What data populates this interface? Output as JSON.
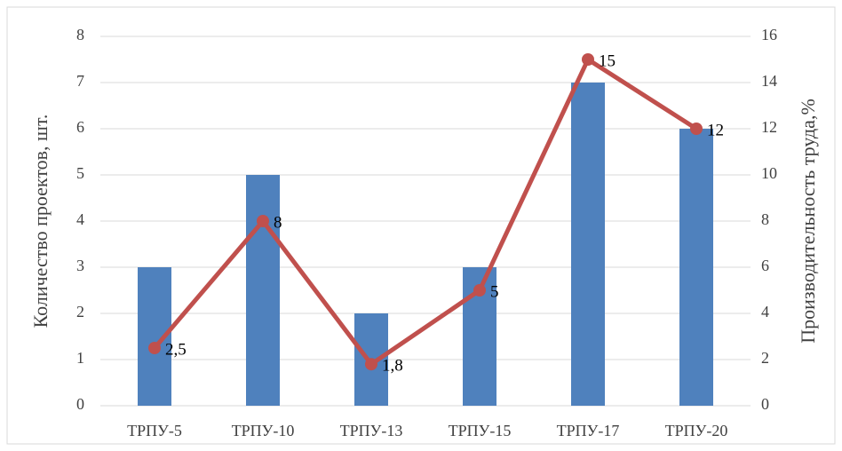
{
  "chart_data": {
    "type": "bar_line",
    "categories": [
      "ТРПУ-5",
      "ТРПУ-10",
      "ТРПУ-13",
      "ТРПУ-15",
      "ТРПУ-17",
      "ТРПУ-20"
    ],
    "y_label": "Количество проектов, шт.",
    "y2_label": "Производительность труда,%",
    "series": [
      {
        "type": "bar",
        "color": "#4f81bd",
        "values": [
          3,
          5,
          2,
          3,
          7,
          6
        ]
      },
      {
        "type": "line",
        "axis": "y2",
        "color": "#c0504d",
        "values": [
          2.5,
          8,
          1.8,
          5,
          15,
          12
        ],
        "value_labels": [
          "2,5",
          "8",
          "1,8",
          "5",
          "15",
          "12"
        ]
      }
    ],
    "ylim": [
      0,
      8
    ],
    "yticks": [
      0,
      1,
      2,
      3,
      4,
      5,
      6,
      7,
      8
    ],
    "y2lim": [
      0,
      16
    ],
    "y2ticks": [
      0,
      2,
      4,
      6,
      8,
      10,
      12,
      14,
      16
    ],
    "grid": true
  }
}
